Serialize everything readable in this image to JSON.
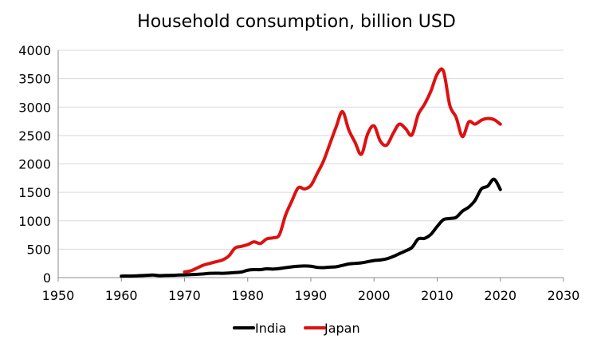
{
  "chart_data": {
    "type": "line",
    "title": "Household consumption, billion USD",
    "xlabel": "",
    "ylabel": "",
    "xlim": [
      1950,
      2030
    ],
    "ylim": [
      0,
      4000
    ],
    "x_ticks": [
      1950,
      1960,
      1970,
      1980,
      1990,
      2000,
      2010,
      2020,
      2030
    ],
    "y_ticks": [
      0,
      500,
      1000,
      1500,
      2000,
      2500,
      3000,
      3500,
      4000
    ],
    "grid": "horizontal",
    "legend": "bottom",
    "series": [
      {
        "name": "India",
        "color": "#000000",
        "x": [
          1960,
          1961,
          1962,
          1963,
          1964,
          1965,
          1966,
          1967,
          1968,
          1969,
          1970,
          1971,
          1972,
          1973,
          1974,
          1975,
          1976,
          1977,
          1978,
          1979,
          1980,
          1981,
          1982,
          1983,
          1984,
          1985,
          1986,
          1987,
          1988,
          1989,
          1990,
          1991,
          1992,
          1993,
          1994,
          1995,
          1996,
          1997,
          1998,
          1999,
          2000,
          2001,
          2002,
          2003,
          2004,
          2005,
          2006,
          2007,
          2008,
          2009,
          2010,
          2011,
          2012,
          2013,
          2014,
          2015,
          2016,
          2017,
          2018,
          2019,
          2020
        ],
        "y": [
          26,
          28,
          30,
          35,
          40,
          45,
          35,
          38,
          40,
          45,
          48,
          52,
          58,
          65,
          75,
          78,
          75,
          80,
          90,
          98,
          130,
          140,
          140,
          155,
          150,
          160,
          175,
          190,
          200,
          205,
          200,
          180,
          175,
          185,
          190,
          215,
          240,
          250,
          260,
          280,
          300,
          310,
          330,
          370,
          420,
          470,
          530,
          680,
          690,
          760,
          900,
          1020,
          1040,
          1060,
          1170,
          1240,
          1360,
          1560,
          1610,
          1730,
          1550
        ]
      },
      {
        "name": "Japan",
        "color": "#dd1111",
        "x": [
          1970,
          1971,
          1972,
          1973,
          1974,
          1975,
          1976,
          1977,
          1978,
          1979,
          1980,
          1981,
          1982,
          1983,
          1984,
          1985,
          1986,
          1987,
          1988,
          1989,
          1990,
          1991,
          1992,
          1993,
          1994,
          1995,
          1996,
          1997,
          1998,
          1999,
          2000,
          2001,
          2002,
          2003,
          2004,
          2005,
          2006,
          2007,
          2008,
          2009,
          2010,
          2011,
          2012,
          2013,
          2014,
          2015,
          2016,
          2017,
          2018,
          2019,
          2020
        ],
        "y": [
          100,
          120,
          170,
          220,
          250,
          280,
          310,
          380,
          520,
          550,
          580,
          630,
          600,
          680,
          700,
          750,
          1100,
          1350,
          1580,
          1560,
          1620,
          1830,
          2050,
          2350,
          2650,
          2920,
          2600,
          2380,
          2170,
          2530,
          2670,
          2400,
          2330,
          2530,
          2700,
          2620,
          2510,
          2870,
          3050,
          3280,
          3580,
          3630,
          3030,
          2820,
          2480,
          2740,
          2700,
          2770,
          2800,
          2780,
          2700
        ]
      }
    ]
  }
}
